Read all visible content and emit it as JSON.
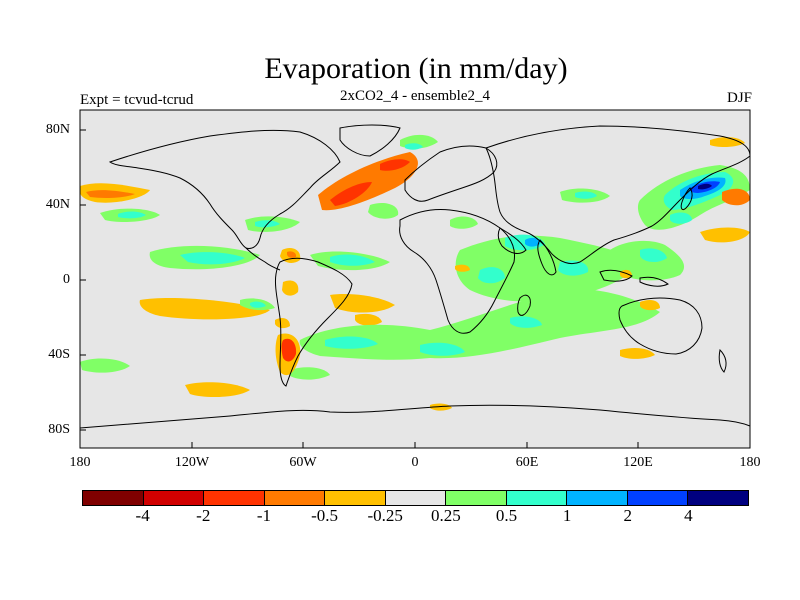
{
  "title": "Evaporation (in mm/day)",
  "left_label": "Expt = tcvud-tcrud",
  "center_label": "2xCO2_4 - ensemble2_4",
  "right_label": "DJF",
  "lat_ticks": [
    "80N",
    "40N",
    "0",
    "40S",
    "80S"
  ],
  "lon_ticks": [
    "180",
    "120W",
    "60W",
    "0",
    "60E",
    "120E",
    "180"
  ],
  "colorbar": {
    "colors": [
      "#800000",
      "#d10000",
      "#ff3300",
      "#ff7a00",
      "#ffc000",
      "#e6e6e6",
      "#80ff66",
      "#33ffcc",
      "#00b3ff",
      "#0040ff",
      "#000080"
    ],
    "labels": [
      "-4",
      "-2",
      "-1",
      "-0.5",
      "-0.25",
      "0.25",
      "0.5",
      "1",
      "2",
      "4"
    ]
  },
  "colors": {
    "background": "#e6e6e6",
    "coast": "#000000"
  }
}
